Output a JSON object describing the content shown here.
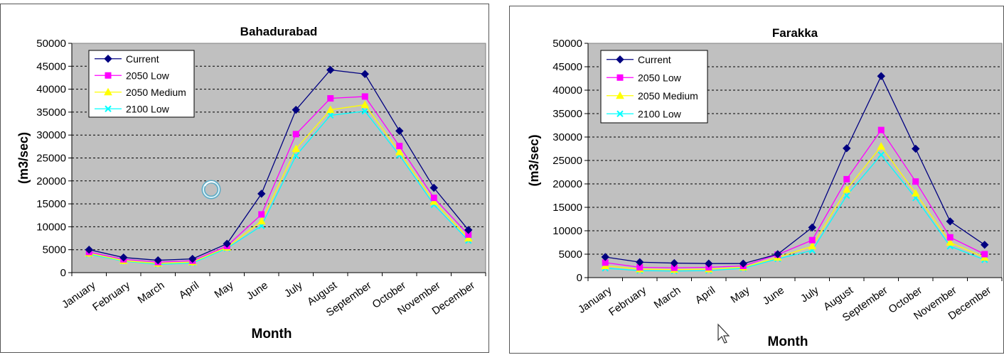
{
  "chart_data": [
    {
      "type": "line",
      "title": "Bahadurabad",
      "xlabel": "Month",
      "ylabel": "(m3/sec)",
      "ylim": [
        0,
        50000
      ],
      "ytick_step": 5000,
      "grid": "horizontal dashed",
      "legend_position": "top-left",
      "categories": [
        "January",
        "February",
        "March",
        "April",
        "May",
        "June",
        "July",
        "August",
        "September",
        "October",
        "November",
        "December"
      ],
      "series": [
        {
          "name": "Current",
          "color": "#000080",
          "marker": "diamond",
          "values": [
            5000,
            3300,
            2700,
            3000,
            6300,
            17200,
            35500,
            44200,
            43300,
            30900,
            18500,
            9300
          ]
        },
        {
          "name": "2050 Low",
          "color": "#ff00ff",
          "marker": "square",
          "values": [
            4500,
            2900,
            2300,
            2600,
            5800,
            12700,
            30200,
            38000,
            38400,
            27600,
            16300,
            8300
          ]
        },
        {
          "name": "2050 Medium",
          "color": "#ffff00",
          "marker": "triangle",
          "values": [
            4200,
            2600,
            2000,
            2300,
            5500,
            11200,
            27000,
            35500,
            36600,
            26300,
            15500,
            7500
          ]
        },
        {
          "name": "2100 Low",
          "color": "#00ffff",
          "marker": "x",
          "values": [
            4000,
            2500,
            1800,
            2100,
            5300,
            10200,
            25500,
            34300,
            35200,
            25600,
            14800,
            7000
          ]
        }
      ]
    },
    {
      "type": "line",
      "title": "Farakka",
      "xlabel": "Month",
      "ylabel": "(m3/sec)",
      "ylim": [
        0,
        50000
      ],
      "ytick_step": 5000,
      "grid": "horizontal dashed",
      "legend_position": "top-left",
      "categories": [
        "January",
        "February",
        "March",
        "April",
        "May",
        "June",
        "July",
        "August",
        "September",
        "October",
        "November",
        "December"
      ],
      "series": [
        {
          "name": "Current",
          "color": "#000080",
          "marker": "diamond",
          "values": [
            4400,
            3300,
            3100,
            3000,
            3000,
            5000,
            10700,
            27600,
            43000,
            27500,
            12000,
            7000
          ]
        },
        {
          "name": "2050 Low",
          "color": "#ff00ff",
          "marker": "square",
          "values": [
            3200,
            2200,
            2100,
            2200,
            2500,
            4900,
            8000,
            21000,
            31500,
            20500,
            8600,
            5000
          ]
        },
        {
          "name": "2050 Medium",
          "color": "#ffff00",
          "marker": "triangle",
          "values": [
            2500,
            1800,
            1700,
            1800,
            2200,
            4300,
            6700,
            18800,
            28000,
            18000,
            7500,
            4300
          ]
        },
        {
          "name": "2100 Low",
          "color": "#00ffff",
          "marker": "x",
          "values": [
            2000,
            1500,
            1400,
            1500,
            2000,
            4000,
            5800,
            17500,
            26200,
            17000,
            6700,
            3800
          ]
        }
      ]
    }
  ],
  "icons": {
    "loading_icon": "busy-spinner-icon",
    "cursor_icon": "mouse-pointer-icon"
  },
  "colors": {
    "plot_background": "#c0c0c0",
    "axis": "#000000",
    "grid": "#000000"
  }
}
